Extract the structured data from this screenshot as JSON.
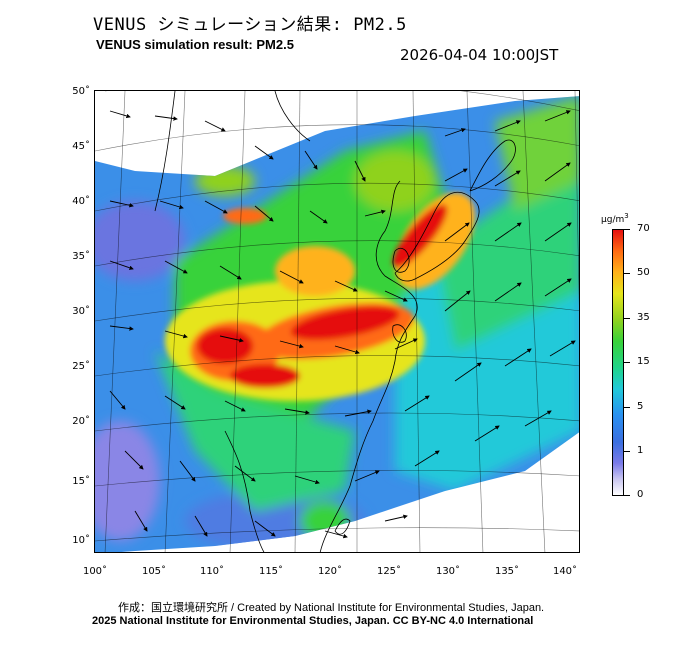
{
  "title_jp": "VENUS シミュレーション結果: PM2.5",
  "title_en": "VENUS simulation result: PM2.5",
  "datetime": "2026-04-04 10:00JST",
  "lat_labels": [
    "50˚",
    "45˚",
    "40˚",
    "35˚",
    "30˚",
    "25˚",
    "20˚",
    "15˚",
    "10˚"
  ],
  "lon_labels": [
    "100˚",
    "105˚",
    "110˚",
    "115˚",
    "120˚",
    "125˚",
    "130˚",
    "135˚",
    "140˚"
  ],
  "colorbar": {
    "unit": "μg/m",
    "unit_sup": "3",
    "ticks": [
      "70",
      "50",
      "35",
      "15",
      "5",
      "1",
      "0"
    ]
  },
  "credit_line1": "作成：国立環境研究所 / Created by National Institute for Environmental Studies, Japan.",
  "credit_line2": "2025 National Institute for Environmental Studies, Japan. CC BY-NC 4.0 International",
  "colors": {
    "very_high": "#e51010",
    "high": "#ff6a12",
    "moderate": "#e6e51c",
    "mid": "#39d23a",
    "low": "#21c9d9",
    "very_low": "#2a6fe0",
    "minimal": "#c9c6f0"
  }
}
